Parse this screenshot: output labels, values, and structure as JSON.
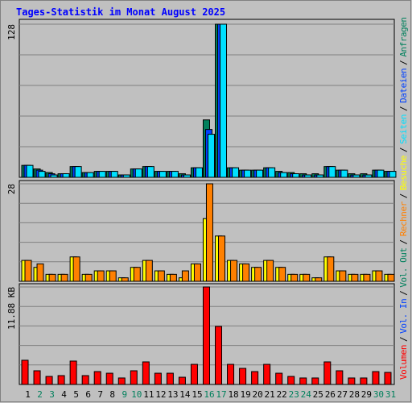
{
  "chart_data": [
    {
      "type": "bar",
      "title": "Tages-Statistik im Monat August 2025",
      "categories": [
        "1",
        "2",
        "3",
        "4",
        "5",
        "6",
        "7",
        "8",
        "9",
        "10",
        "11",
        "12",
        "13",
        "14",
        "15",
        "16",
        "17",
        "18",
        "19",
        "20",
        "21",
        "22",
        "23",
        "24",
        "25",
        "26",
        "27",
        "28",
        "29",
        "30",
        "31"
      ],
      "category_colors": [
        "#000000",
        "#00805c",
        "#00805c",
        "#000000",
        "#000000",
        "#000000",
        "#000000",
        "#000000",
        "#00805c",
        "#00805c",
        "#000000",
        "#000000",
        "#000000",
        "#000000",
        "#000000",
        "#00805c",
        "#00805c",
        "#000000",
        "#000000",
        "#000000",
        "#000000",
        "#000000",
        "#00805c",
        "#00805c",
        "#000000",
        "#000000",
        "#000000",
        "#000000",
        "#000000",
        "#00805c",
        "#00805c"
      ],
      "ylim": [
        0,
        128
      ],
      "yticks": [
        128
      ],
      "series": [
        {
          "name": "Anfragen",
          "color": "#00805c",
          "values": [
            10,
            7,
            4,
            3,
            9,
            4,
            5,
            5,
            2,
            7,
            9,
            5,
            5,
            3,
            8,
            48,
            128,
            8,
            6,
            6,
            8,
            5,
            4,
            3,
            3,
            9,
            6,
            3,
            3,
            6,
            5
          ]
        },
        {
          "name": "Dateien",
          "color": "#0040ff",
          "values": [
            10,
            6,
            3,
            3,
            9,
            4,
            5,
            5,
            2,
            7,
            9,
            5,
            5,
            2,
            8,
            40,
            128,
            8,
            6,
            6,
            8,
            4,
            3,
            2,
            2,
            9,
            6,
            2,
            2,
            6,
            5
          ]
        },
        {
          "name": "Seiten",
          "color": "#00e0ff",
          "values": [
            10,
            5,
            2,
            3,
            9,
            4,
            5,
            5,
            2,
            7,
            9,
            5,
            5,
            2,
            8,
            36,
            128,
            8,
            6,
            6,
            8,
            4,
            3,
            2,
            2,
            9,
            6,
            2,
            2,
            6,
            5
          ]
        }
      ]
    },
    {
      "type": "bar",
      "ylim": [
        0,
        28
      ],
      "yticks": [
        28
      ],
      "series": [
        {
          "name": "Besuche",
          "color": "#ffff00",
          "values": [
            6,
            4,
            2,
            2,
            7,
            2,
            3,
            3,
            1,
            4,
            6,
            3,
            2,
            1,
            5,
            18,
            13,
            6,
            5,
            4,
            6,
            4,
            2,
            2,
            1,
            7,
            3,
            2,
            2,
            3,
            2
          ]
        },
        {
          "name": "Rechner",
          "color": "#ff8000",
          "values": [
            6,
            5,
            2,
            2,
            7,
            2,
            3,
            3,
            1,
            4,
            6,
            3,
            2,
            3,
            5,
            28,
            13,
            6,
            5,
            4,
            6,
            4,
            2,
            2,
            1,
            7,
            3,
            2,
            2,
            3,
            2
          ]
        }
      ]
    },
    {
      "type": "bar",
      "ylim": [
        0,
        11.88
      ],
      "yticks": [
        {
          "value": 11.88,
          "label": "11.88 KB"
        }
      ],
      "series": [
        {
          "name": "Volumen",
          "color": "#ff0000",
          "values": [
            2.95,
            1.67,
            0.98,
            1.08,
            2.85,
            1.08,
            1.57,
            1.37,
            0.79,
            1.67,
            2.75,
            1.37,
            1.37,
            0.88,
            2.45,
            11.88,
            7.07,
            2.45,
            1.96,
            1.57,
            2.45,
            1.37,
            0.98,
            0.79,
            0.79,
            2.75,
            1.67,
            0.79,
            0.79,
            1.57,
            1.47
          ]
        }
      ],
      "extra_legend": [
        {
          "name": "Vol. In",
          "color": "#0040ff"
        },
        {
          "name": "Vol. Out",
          "color": "#00805c"
        }
      ]
    }
  ],
  "legend_separator": "/"
}
